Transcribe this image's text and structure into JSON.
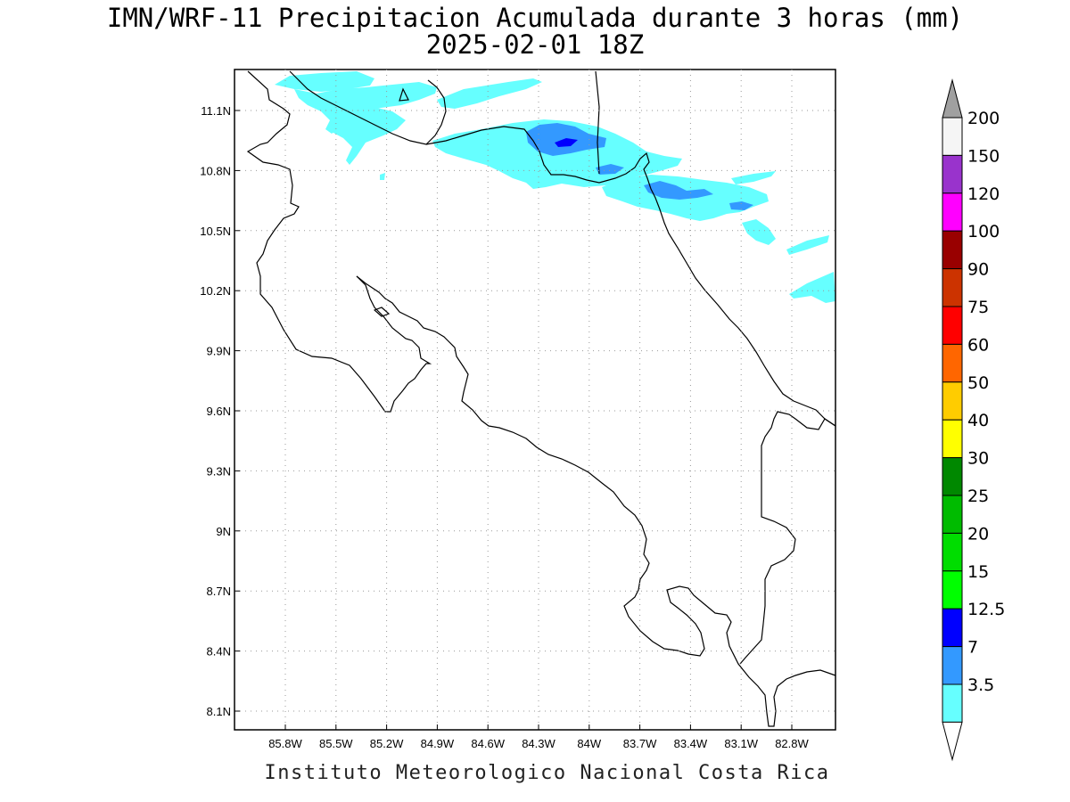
{
  "title": {
    "line1": "IMN/WRF-11 Precipitacion Acumulada durante 3 horas (mm)",
    "line2": "2025-02-01 18Z"
  },
  "footer": "Instituto Meteorologico Nacional Costa Rica",
  "map": {
    "lon_range": [
      -86.1,
      -82.5
    ],
    "lat_range": [
      8.0,
      11.3
    ],
    "lon_ticks": [
      {
        "value": -85.8,
        "label": "85.8W"
      },
      {
        "value": -85.5,
        "label": "85.5W"
      },
      {
        "value": -85.2,
        "label": "85.2W"
      },
      {
        "value": -84.9,
        "label": "84.9W"
      },
      {
        "value": -84.6,
        "label": "84.6W"
      },
      {
        "value": -84.3,
        "label": "84.3W"
      },
      {
        "value": -84.0,
        "label": "84W"
      },
      {
        "value": -83.7,
        "label": "83.7W"
      },
      {
        "value": -83.4,
        "label": "83.4W"
      },
      {
        "value": -83.1,
        "label": "83.1W"
      },
      {
        "value": -82.8,
        "label": "82.8W"
      }
    ],
    "lat_ticks": [
      {
        "value": 11.1,
        "label": "11.1N"
      },
      {
        "value": 10.8,
        "label": "10.8N"
      },
      {
        "value": 10.5,
        "label": "10.5N"
      },
      {
        "value": 10.2,
        "label": "10.2N"
      },
      {
        "value": 9.9,
        "label": "9.9N"
      },
      {
        "value": 9.6,
        "label": "9.6N"
      },
      {
        "value": 9.3,
        "label": "9.3N"
      },
      {
        "value": 9.0,
        "label": "9N"
      },
      {
        "value": 8.7,
        "label": "8.7N"
      },
      {
        "value": 8.4,
        "label": "8.4N"
      },
      {
        "value": 8.1,
        "label": "8.1N"
      }
    ],
    "grid": true
  },
  "colorbar": {
    "levels": [
      {
        "label": "3.5",
        "color": "#66ffff"
      },
      {
        "label": "7",
        "color": "#3399ff"
      },
      {
        "label": "12.5",
        "color": "#0000ff"
      },
      {
        "label": "15",
        "color": "#00ff00"
      },
      {
        "label": "20",
        "color": "#00dd00"
      },
      {
        "label": "25",
        "color": "#00bb00"
      },
      {
        "label": "30",
        "color": "#008800"
      },
      {
        "label": "40",
        "color": "#ffff00"
      },
      {
        "label": "50",
        "color": "#ffcc00"
      },
      {
        "label": "60",
        "color": "#ff6600"
      },
      {
        "label": "75",
        "color": "#ff0000"
      },
      {
        "label": "90",
        "color": "#cc3300"
      },
      {
        "label": "100",
        "color": "#990000"
      },
      {
        "label": "120",
        "color": "#ff00ff"
      },
      {
        "label": "150",
        "color": "#9933cc"
      },
      {
        "label": "200",
        "color": "#f5f5f5"
      }
    ],
    "top_arrow_color": "#a0a0a0",
    "bottom_arrow_color": "#ffffff"
  },
  "precip_colors": {
    "light": "#66ffff",
    "medium": "#3399ff",
    "heavy": "#0000ff"
  }
}
